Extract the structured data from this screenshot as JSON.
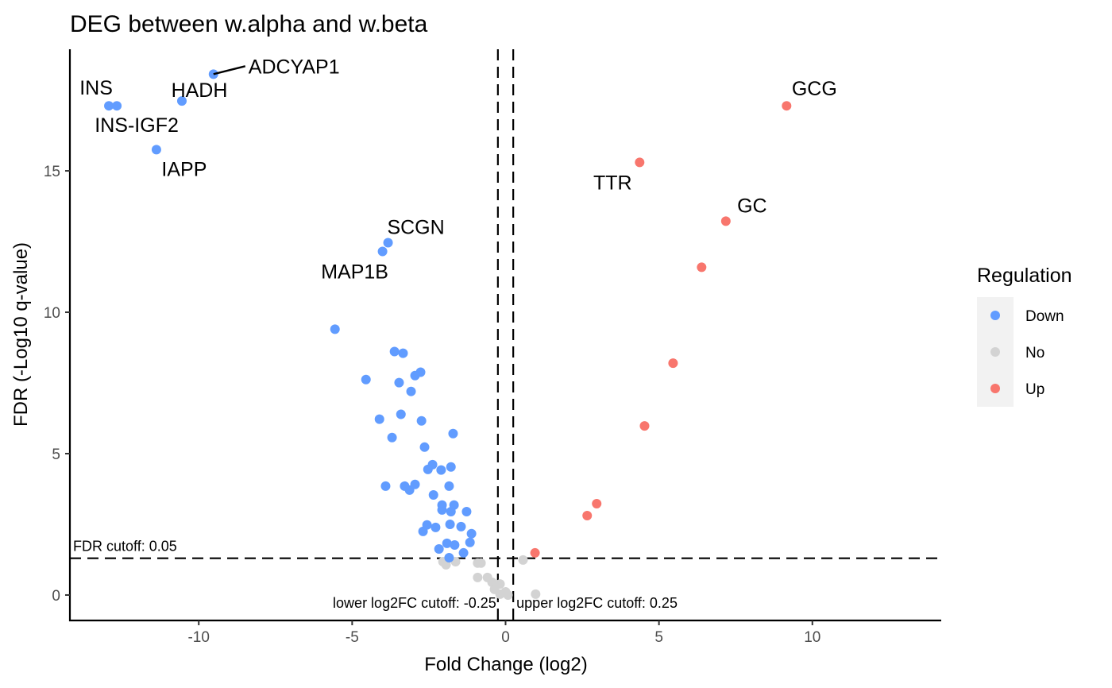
{
  "chart_data": {
    "type": "scatter",
    "title": "DEG between w.alpha and w.beta",
    "xlabel": "Fold Change (log2)",
    "ylabel": "FDR (-Log10 q-value)",
    "xlim": [
      -14.2,
      14.2
    ],
    "ylim": [
      -0.9,
      19.3
    ],
    "x_ticks": [
      -10,
      -5,
      0,
      5,
      10
    ],
    "x_tick_labels": [
      "-10",
      "-5",
      "0",
      "5",
      "10"
    ],
    "y_ticks": [
      0,
      5,
      10,
      15
    ],
    "y_tick_labels": [
      "0",
      "5",
      "10",
      "15"
    ],
    "grid": false,
    "legend": {
      "title": "Regulation",
      "placement": "right",
      "entries": [
        {
          "label": "Down",
          "color": "#619CFF"
        },
        {
          "label": "No",
          "color": "#D3D3D3"
        },
        {
          "label": "Up",
          "color": "#F8766D"
        }
      ]
    },
    "cutoffs": {
      "fdr": {
        "value": 1.3,
        "label": "FDR cutoff: 0.05"
      },
      "lower_log2fc": {
        "value": -0.25,
        "label": "lower log2FC cutoff: -0.25"
      },
      "upper_log2fc": {
        "value": 0.25,
        "label": "upper log2FC cutoff: 0.25"
      }
    },
    "series": [
      {
        "name": "Down",
        "color": "#619CFF",
        "points": [
          {
            "x": -12.93,
            "y": 17.3,
            "label": "INS"
          },
          {
            "x": -12.67,
            "y": 17.3,
            "label": "INS-IGF2"
          },
          {
            "x": -9.52,
            "y": 18.42,
            "label": "ADCYAP1"
          },
          {
            "x": -10.55,
            "y": 17.47,
            "label": "HADH"
          },
          {
            "x": -11.38,
            "y": 15.75,
            "label": "IAPP"
          },
          {
            "x": -3.83,
            "y": 12.46,
            "label": "SCGN"
          },
          {
            "x": -4.01,
            "y": 12.15,
            "label": "MAP1B"
          },
          {
            "x": -5.56,
            "y": 9.4
          },
          {
            "x": -3.62,
            "y": 8.61
          },
          {
            "x": -3.34,
            "y": 8.55
          },
          {
            "x": -2.77,
            "y": 7.88
          },
          {
            "x": -2.95,
            "y": 7.76
          },
          {
            "x": -4.55,
            "y": 7.62
          },
          {
            "x": -3.47,
            "y": 7.51
          },
          {
            "x": -3.08,
            "y": 7.2
          },
          {
            "x": -4.11,
            "y": 6.22
          },
          {
            "x": -3.41,
            "y": 6.39
          },
          {
            "x": -2.74,
            "y": 6.16
          },
          {
            "x": -1.71,
            "y": 5.71
          },
          {
            "x": -3.7,
            "y": 5.57
          },
          {
            "x": -2.64,
            "y": 5.23
          },
          {
            "x": -2.38,
            "y": 4.61
          },
          {
            "x": -2.53,
            "y": 4.44
          },
          {
            "x": -2.1,
            "y": 4.42
          },
          {
            "x": -1.78,
            "y": 4.53
          },
          {
            "x": -3.91,
            "y": 3.85
          },
          {
            "x": -3.29,
            "y": 3.85
          },
          {
            "x": -3.13,
            "y": 3.71
          },
          {
            "x": -2.95,
            "y": 3.91
          },
          {
            "x": -1.84,
            "y": 3.85
          },
          {
            "x": -2.35,
            "y": 3.54
          },
          {
            "x": -2.07,
            "y": 3.18
          },
          {
            "x": -1.68,
            "y": 3.18
          },
          {
            "x": -2.07,
            "y": 3.01
          },
          {
            "x": -1.78,
            "y": 2.95
          },
          {
            "x": -1.27,
            "y": 2.95
          },
          {
            "x": -2.56,
            "y": 2.48
          },
          {
            "x": -2.69,
            "y": 2.25
          },
          {
            "x": -2.28,
            "y": 2.39
          },
          {
            "x": -1.81,
            "y": 2.5
          },
          {
            "x": -1.45,
            "y": 2.42
          },
          {
            "x": -1.11,
            "y": 2.17
          },
          {
            "x": -1.16,
            "y": 1.86
          },
          {
            "x": -1.91,
            "y": 1.83
          },
          {
            "x": -1.66,
            "y": 1.77
          },
          {
            "x": -2.17,
            "y": 1.63
          },
          {
            "x": -1.37,
            "y": 1.49
          },
          {
            "x": -1.84,
            "y": 1.32
          }
        ]
      },
      {
        "name": "No",
        "color": "#D3D3D3",
        "points": [
          {
            "x": -2.04,
            "y": 1.18
          },
          {
            "x": -1.94,
            "y": 1.07
          },
          {
            "x": -1.63,
            "y": 1.18
          },
          {
            "x": -0.91,
            "y": 1.13
          },
          {
            "x": -0.8,
            "y": 1.13
          },
          {
            "x": 0.57,
            "y": 1.24
          },
          {
            "x": -0.91,
            "y": 0.62
          },
          {
            "x": -0.59,
            "y": 0.62
          },
          {
            "x": -0.44,
            "y": 0.45
          },
          {
            "x": -0.18,
            "y": 0.39
          },
          {
            "x": -0.36,
            "y": 0.2
          },
          {
            "x": 0.0,
            "y": 0.11
          },
          {
            "x": -0.18,
            "y": 0.03
          },
          {
            "x": 0.08,
            "y": 0.0
          },
          {
            "x": 0.98,
            "y": 0.03
          }
        ]
      },
      {
        "name": "Up",
        "color": "#F8766D",
        "points": [
          {
            "x": 9.16,
            "y": 17.3,
            "label": "GCG"
          },
          {
            "x": 4.37,
            "y": 15.3,
            "label": "TTR"
          },
          {
            "x": 7.18,
            "y": 13.22,
            "label": "GC"
          },
          {
            "x": 6.39,
            "y": 11.59
          },
          {
            "x": 5.46,
            "y": 8.2
          },
          {
            "x": 4.53,
            "y": 5.98
          },
          {
            "x": 2.97,
            "y": 3.23
          },
          {
            "x": 2.66,
            "y": 2.81
          },
          {
            "x": 0.96,
            "y": 1.49
          }
        ]
      }
    ]
  }
}
